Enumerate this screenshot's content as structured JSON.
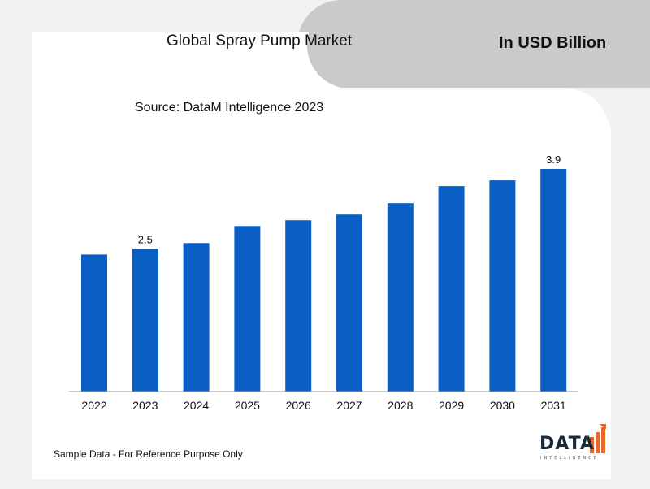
{
  "header": {
    "title": "Global Spray Pump Market",
    "unit_label": "In USD Billion",
    "source": "Source: DataM Intelligence 2023"
  },
  "footer": {
    "note": "Sample Data - For Reference Purpose Only"
  },
  "logo": {
    "word": "DATA",
    "subtitle": "INTELLIGENCE"
  },
  "colors": {
    "bar": "#0a5fc4",
    "panel_gray": "#c9cacc",
    "panel_light": "#f2f2f2",
    "axis": "#9e9e9e",
    "logo_orange": "#e8682c"
  },
  "chart_data": {
    "type": "bar",
    "title": "Global Spray Pump Market",
    "xlabel": "",
    "ylabel": "",
    "categories": [
      "2022",
      "2023",
      "2024",
      "2025",
      "2026",
      "2027",
      "2028",
      "2029",
      "2030",
      "2031"
    ],
    "values": [
      2.4,
      2.5,
      2.6,
      2.9,
      3.0,
      3.1,
      3.3,
      3.6,
      3.7,
      3.9
    ],
    "data_labels": [
      {
        "category": "2023",
        "text": "2.5"
      },
      {
        "category": "2031",
        "text": "3.9"
      }
    ],
    "ylim": [
      0,
      3.9
    ],
    "grid": false,
    "legend": "none"
  }
}
